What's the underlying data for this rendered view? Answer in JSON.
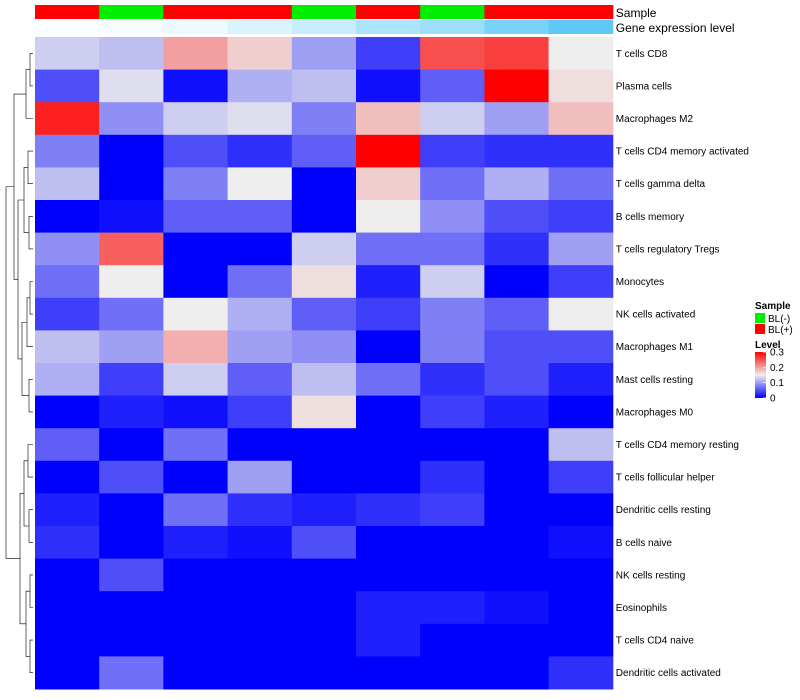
{
  "chart_data": {
    "type": "heatmap",
    "annotation_tracks": [
      "Sample",
      "Gene expression level"
    ],
    "columns": [
      {
        "sample": "BL(+)",
        "expr": 0.02
      },
      {
        "sample": "BL(-)",
        "expr": 0.05
      },
      {
        "sample": "BL(+)",
        "expr": 0.1
      },
      {
        "sample": "BL(+)",
        "expr": 0.2
      },
      {
        "sample": "BL(-)",
        "expr": 0.3
      },
      {
        "sample": "BL(+)",
        "expr": 0.45
      },
      {
        "sample": "BL(-)",
        "expr": 0.55
      },
      {
        "sample": "BL(+)",
        "expr": 0.75
      },
      {
        "sample": "BL(+)",
        "expr": 0.9
      }
    ],
    "rows": [
      "T cells CD8",
      "Plasma cells",
      "Macrophages M2",
      "T cells CD4 memory activated",
      "T cells gamma delta",
      "B cells memory",
      "T cells regulatory  Tregs",
      "Monocytes",
      "NK cells activated",
      "Macrophages M1",
      "Mast cells resting",
      "Macrophages M0",
      "T cells CD4 memory resting",
      "T cells follicular helper",
      "Dendritic cells resting",
      "B cells naive",
      "NK cells resting",
      "Eosinophils",
      "T cells CD4 naive",
      "Dendritic cells activated"
    ],
    "values": [
      [
        0.13,
        0.12,
        0.2,
        0.17,
        0.1,
        0.04,
        0.25,
        0.26,
        0.15
      ],
      [
        0.05,
        0.14,
        0.01,
        0.11,
        0.12,
        0.01,
        0.06,
        0.3,
        0.16
      ],
      [
        0.28,
        0.09,
        0.13,
        0.14,
        0.08,
        0.18,
        0.13,
        0.1,
        0.18
      ],
      [
        0.08,
        0.0,
        0.05,
        0.03,
        0.06,
        0.3,
        0.04,
        0.03,
        0.03
      ],
      [
        0.12,
        0.0,
        0.08,
        0.15,
        0.0,
        0.17,
        0.07,
        0.11,
        0.07
      ],
      [
        0.0,
        0.01,
        0.06,
        0.06,
        0.0,
        0.15,
        0.09,
        0.05,
        0.04
      ],
      [
        0.09,
        0.24,
        0.0,
        0.0,
        0.13,
        0.07,
        0.07,
        0.03,
        0.1
      ],
      [
        0.07,
        0.15,
        0.0,
        0.07,
        0.16,
        0.02,
        0.13,
        0.0,
        0.04
      ],
      [
        0.04,
        0.07,
        0.15,
        0.11,
        0.06,
        0.04,
        0.08,
        0.06,
        0.15
      ],
      [
        0.12,
        0.1,
        0.19,
        0.1,
        0.09,
        0.0,
        0.08,
        0.05,
        0.05
      ],
      [
        0.11,
        0.04,
        0.13,
        0.06,
        0.12,
        0.07,
        0.03,
        0.05,
        0.02
      ],
      [
        0.0,
        0.02,
        0.01,
        0.04,
        0.16,
        0.0,
        0.04,
        0.02,
        0.0
      ],
      [
        0.06,
        0.0,
        0.07,
        0.0,
        0.0,
        0.0,
        0.0,
        0.0,
        0.12
      ],
      [
        0.0,
        0.05,
        0.0,
        0.1,
        0.0,
        0.0,
        0.03,
        0.0,
        0.04
      ],
      [
        0.02,
        0.0,
        0.07,
        0.03,
        0.02,
        0.03,
        0.04,
        0.0,
        0.0
      ],
      [
        0.03,
        0.0,
        0.02,
        0.01,
        0.05,
        0.0,
        0.0,
        0.0,
        0.01
      ],
      [
        0.0,
        0.05,
        0.0,
        0.0,
        0.0,
        0.0,
        0.0,
        0.0,
        0.0
      ],
      [
        0.0,
        0.0,
        0.0,
        0.0,
        0.0,
        0.02,
        0.02,
        0.01,
        0.0
      ],
      [
        0.0,
        0.0,
        0.0,
        0.0,
        0.0,
        0.02,
        0.0,
        0.0,
        0.0
      ],
      [
        0.0,
        0.07,
        0.0,
        0.0,
        0.0,
        0.0,
        0.0,
        0.0,
        0.03
      ]
    ],
    "color_scale": {
      "min": 0,
      "mid": 0.15,
      "max": 0.3,
      "low": "#0000ff",
      "middle": "#eeeeee",
      "high": "#ff0000"
    },
    "expr_scale": {
      "low": "#ffffff",
      "high": "#4cc3f5"
    },
    "sample_colors": {
      "BL(-)": "#00ee00",
      "BL(+)": "#ff0000"
    },
    "legend": {
      "sample_title": "Sample",
      "sample_entries": [
        "BL(-)",
        "BL(+)"
      ],
      "level_title": "Level",
      "level_ticks": [
        0.3,
        0.2,
        0.1,
        0
      ]
    }
  }
}
